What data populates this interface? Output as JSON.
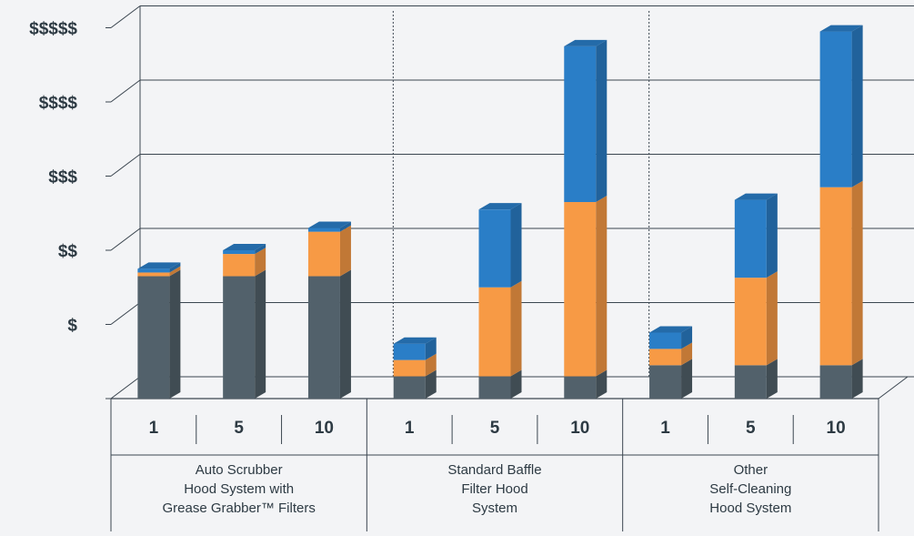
{
  "chart_data": {
    "type": "bar",
    "stacked": true,
    "three_d": true,
    "y_ticks": [
      "$",
      "$$",
      "$$$",
      "$$$$",
      "$$$$$"
    ],
    "ylim": [
      0,
      5
    ],
    "grid": true,
    "colors": {
      "bottom": "#52616b",
      "middle": "#f79a45",
      "top": "#2a7ec7",
      "grid": "#3b4650",
      "text": "#2d3a43"
    },
    "groups": [
      {
        "label_lines": [
          "Auto Scrubber",
          "Hood System with",
          "Grease Grabber™ Filters"
        ],
        "categories": [
          "1",
          "5",
          "10"
        ],
        "stacks": [
          [
            1.65,
            0.05,
            0.05
          ],
          [
            1.65,
            0.3,
            0.05
          ],
          [
            1.65,
            0.6,
            0.05
          ]
        ]
      },
      {
        "label_lines": [
          "Standard Baffle",
          "Filter Hood",
          "System"
        ],
        "categories": [
          "1",
          "5",
          "10"
        ],
        "stacks": [
          [
            0.3,
            0.22,
            0.22
          ],
          [
            0.3,
            1.2,
            1.05
          ],
          [
            0.3,
            2.35,
            2.1
          ]
        ]
      },
      {
        "label_lines": [
          "Other",
          "Self-Cleaning",
          "Hood System"
        ],
        "categories": [
          "1",
          "5",
          "10"
        ],
        "stacks": [
          [
            0.45,
            0.22,
            0.22
          ],
          [
            0.45,
            1.18,
            1.05
          ],
          [
            0.45,
            2.4,
            2.1
          ]
        ]
      }
    ]
  }
}
